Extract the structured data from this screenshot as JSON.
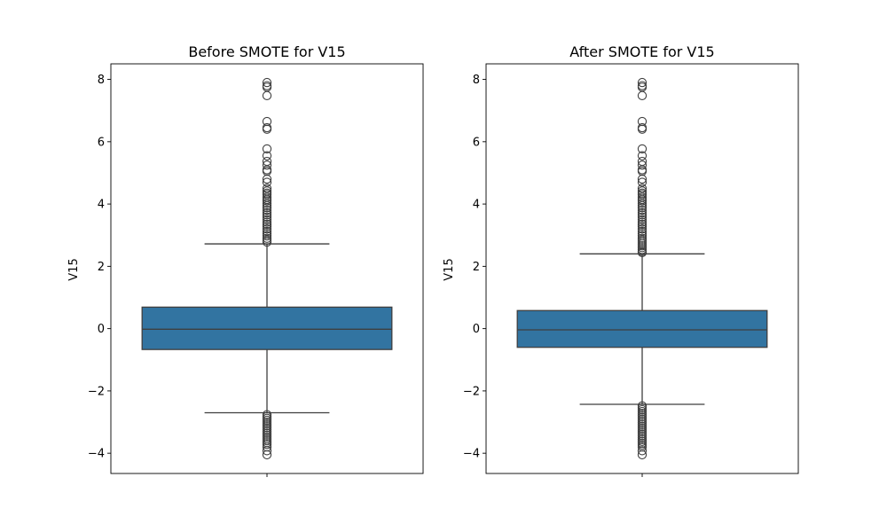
{
  "chart_data": [
    {
      "type": "box",
      "title": "Before SMOTE for V15",
      "xlabel": "",
      "ylabel": "V15",
      "ylim": [
        -4.65,
        8.5
      ],
      "yticks": [
        8,
        6,
        4,
        2,
        0,
        -2,
        -4
      ],
      "ytick_labels": [
        "8",
        "6",
        "4",
        "2",
        "0",
        "−2",
        "−4"
      ],
      "box_color": "#3274a1",
      "stats": {
        "q1": -0.67,
        "median": -0.02,
        "q3": 0.69,
        "whisker_low": -2.7,
        "whisker_high": 2.72
      },
      "outliers_high": [
        7.9,
        7.8,
        7.75,
        7.48,
        6.65,
        6.45,
        6.4,
        5.77,
        5.55,
        5.37,
        5.25,
        5.1,
        5.05,
        4.8,
        4.7,
        4.5,
        4.42,
        4.35,
        4.3,
        4.22,
        4.15,
        4.1,
        4.02,
        3.95,
        3.88,
        3.8,
        3.72,
        3.65,
        3.58,
        3.5,
        3.42,
        3.35,
        3.28,
        3.2,
        3.12,
        3.05,
        2.98,
        2.9,
        2.84,
        2.78
      ],
      "outliers_low": [
        -2.76,
        -2.82,
        -2.88,
        -2.94,
        -3.0,
        -3.06,
        -3.12,
        -3.18,
        -3.24,
        -3.3,
        -3.36,
        -3.42,
        -3.48,
        -3.54,
        -3.6,
        -3.66,
        -3.72,
        -3.8,
        -3.92,
        -4.05
      ]
    },
    {
      "type": "box",
      "title": "After SMOTE for V15",
      "xlabel": "",
      "ylabel": "V15",
      "ylim": [
        -4.65,
        8.5
      ],
      "yticks": [
        8,
        6,
        4,
        2,
        0,
        -2,
        -4
      ],
      "ytick_labels": [
        "8",
        "6",
        "4",
        "2",
        "0",
        "−2",
        "−4"
      ],
      "box_color": "#3274a1",
      "stats": {
        "q1": -0.6,
        "median": -0.04,
        "q3": 0.58,
        "whisker_low": -2.43,
        "whisker_high": 2.4
      },
      "outliers_high": [
        7.9,
        7.8,
        7.75,
        7.48,
        6.65,
        6.45,
        6.4,
        5.77,
        5.55,
        5.37,
        5.25,
        5.1,
        5.05,
        4.8,
        4.7,
        4.5,
        4.42,
        4.35,
        4.3,
        4.22,
        4.15,
        4.1,
        4.02,
        3.95,
        3.88,
        3.8,
        3.72,
        3.65,
        3.58,
        3.5,
        3.42,
        3.35,
        3.28,
        3.2,
        3.12,
        3.05,
        2.98,
        2.9,
        2.84,
        2.78,
        2.72,
        2.66,
        2.6,
        2.54,
        2.48,
        2.44
      ],
      "outliers_low": [
        -2.48,
        -2.54,
        -2.6,
        -2.66,
        -2.72,
        -2.78,
        -2.84,
        -2.9,
        -2.96,
        -3.02,
        -3.08,
        -3.14,
        -3.2,
        -3.26,
        -3.32,
        -3.38,
        -3.44,
        -3.5,
        -3.56,
        -3.62,
        -3.68,
        -3.74,
        -3.8,
        -3.92,
        -4.05
      ]
    }
  ]
}
